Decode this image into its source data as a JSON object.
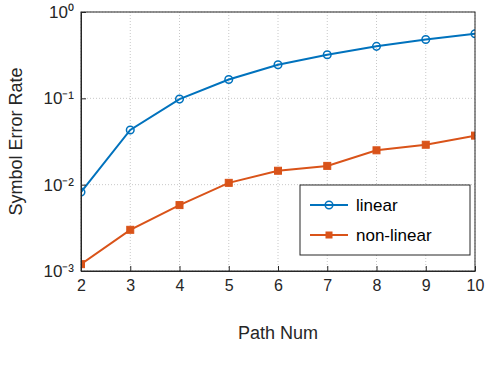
{
  "chart_data": {
    "type": "line",
    "x_label": "Path Num",
    "y_label": "Symbol Error Rate",
    "x": [
      2,
      3,
      4,
      5,
      6,
      7,
      8,
      9,
      10
    ],
    "series": [
      {
        "name": "linear",
        "color": "#0072bd",
        "marker": "circle",
        "values": [
          0.0082,
          0.043,
          0.098,
          0.165,
          0.245,
          0.32,
          0.4,
          0.48,
          0.56
        ]
      },
      {
        "name": "non-linear",
        "color": "#d95319",
        "marker": "square",
        "values": [
          0.0012,
          0.003,
          0.0058,
          0.0105,
          0.0145,
          0.0165,
          0.025,
          0.029,
          0.037
        ]
      }
    ],
    "xlim": [
      2,
      10
    ],
    "xticks": [
      2,
      3,
      4,
      5,
      6,
      7,
      8,
      9,
      10
    ],
    "ylim": [
      0.001,
      1
    ],
    "yticks": [
      {
        "value": 0.001,
        "label": "10⁻³"
      },
      {
        "value": 0.01,
        "label": "10⁻²"
      },
      {
        "value": 0.1,
        "label": "10⁻¹"
      },
      {
        "value": 1,
        "label": "10⁰"
      }
    ],
    "log": "y",
    "grid": true,
    "legend": "lower right"
  }
}
